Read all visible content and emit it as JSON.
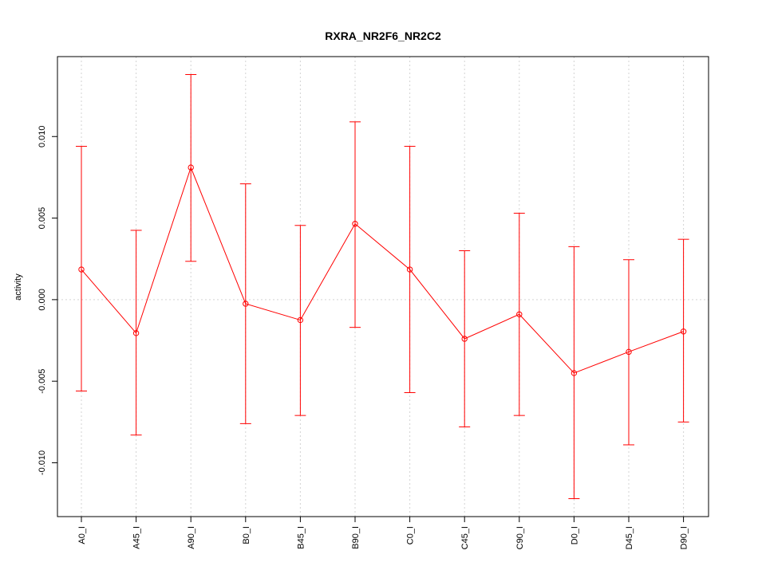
{
  "chart_data": {
    "type": "line",
    "title": "RXRA_NR2F6_NR2C2",
    "xlabel": "",
    "ylabel": "activity",
    "categories": [
      "A0_I",
      "A45_I",
      "A90_I",
      "B0_I",
      "B45_I",
      "B90_I",
      "C0_I",
      "C45_I",
      "C90_I",
      "D0_I",
      "D45_I",
      "D90_I"
    ],
    "series": [
      {
        "values": [
          0.00185,
          -0.00205,
          0.0081,
          -0.00025,
          -0.00125,
          0.00465,
          0.00185,
          -0.0024,
          -0.0009,
          -0.0045,
          -0.0032,
          -0.00195
        ],
        "error_low": [
          -0.0056,
          -0.0083,
          0.00235,
          -0.0076,
          -0.0071,
          -0.0017,
          -0.0057,
          -0.0078,
          -0.0071,
          -0.0122,
          -0.0089,
          -0.0075
        ],
        "error_high": [
          0.0094,
          0.00425,
          0.0138,
          0.0071,
          0.00455,
          0.0109,
          0.0094,
          0.003,
          0.0053,
          0.00325,
          0.00245,
          0.0037
        ]
      }
    ],
    "ylim": [
      -0.0133,
      0.0149
    ],
    "yticks": [
      -0.01,
      -0.005,
      0.0,
      0.005,
      0.01
    ],
    "ytick_labels": [
      "-0.010",
      "-0.005",
      "0.000",
      "0.005",
      "0.010"
    ],
    "grid": true,
    "color": "#ff0000",
    "grid_color": "#d3d3d3"
  }
}
